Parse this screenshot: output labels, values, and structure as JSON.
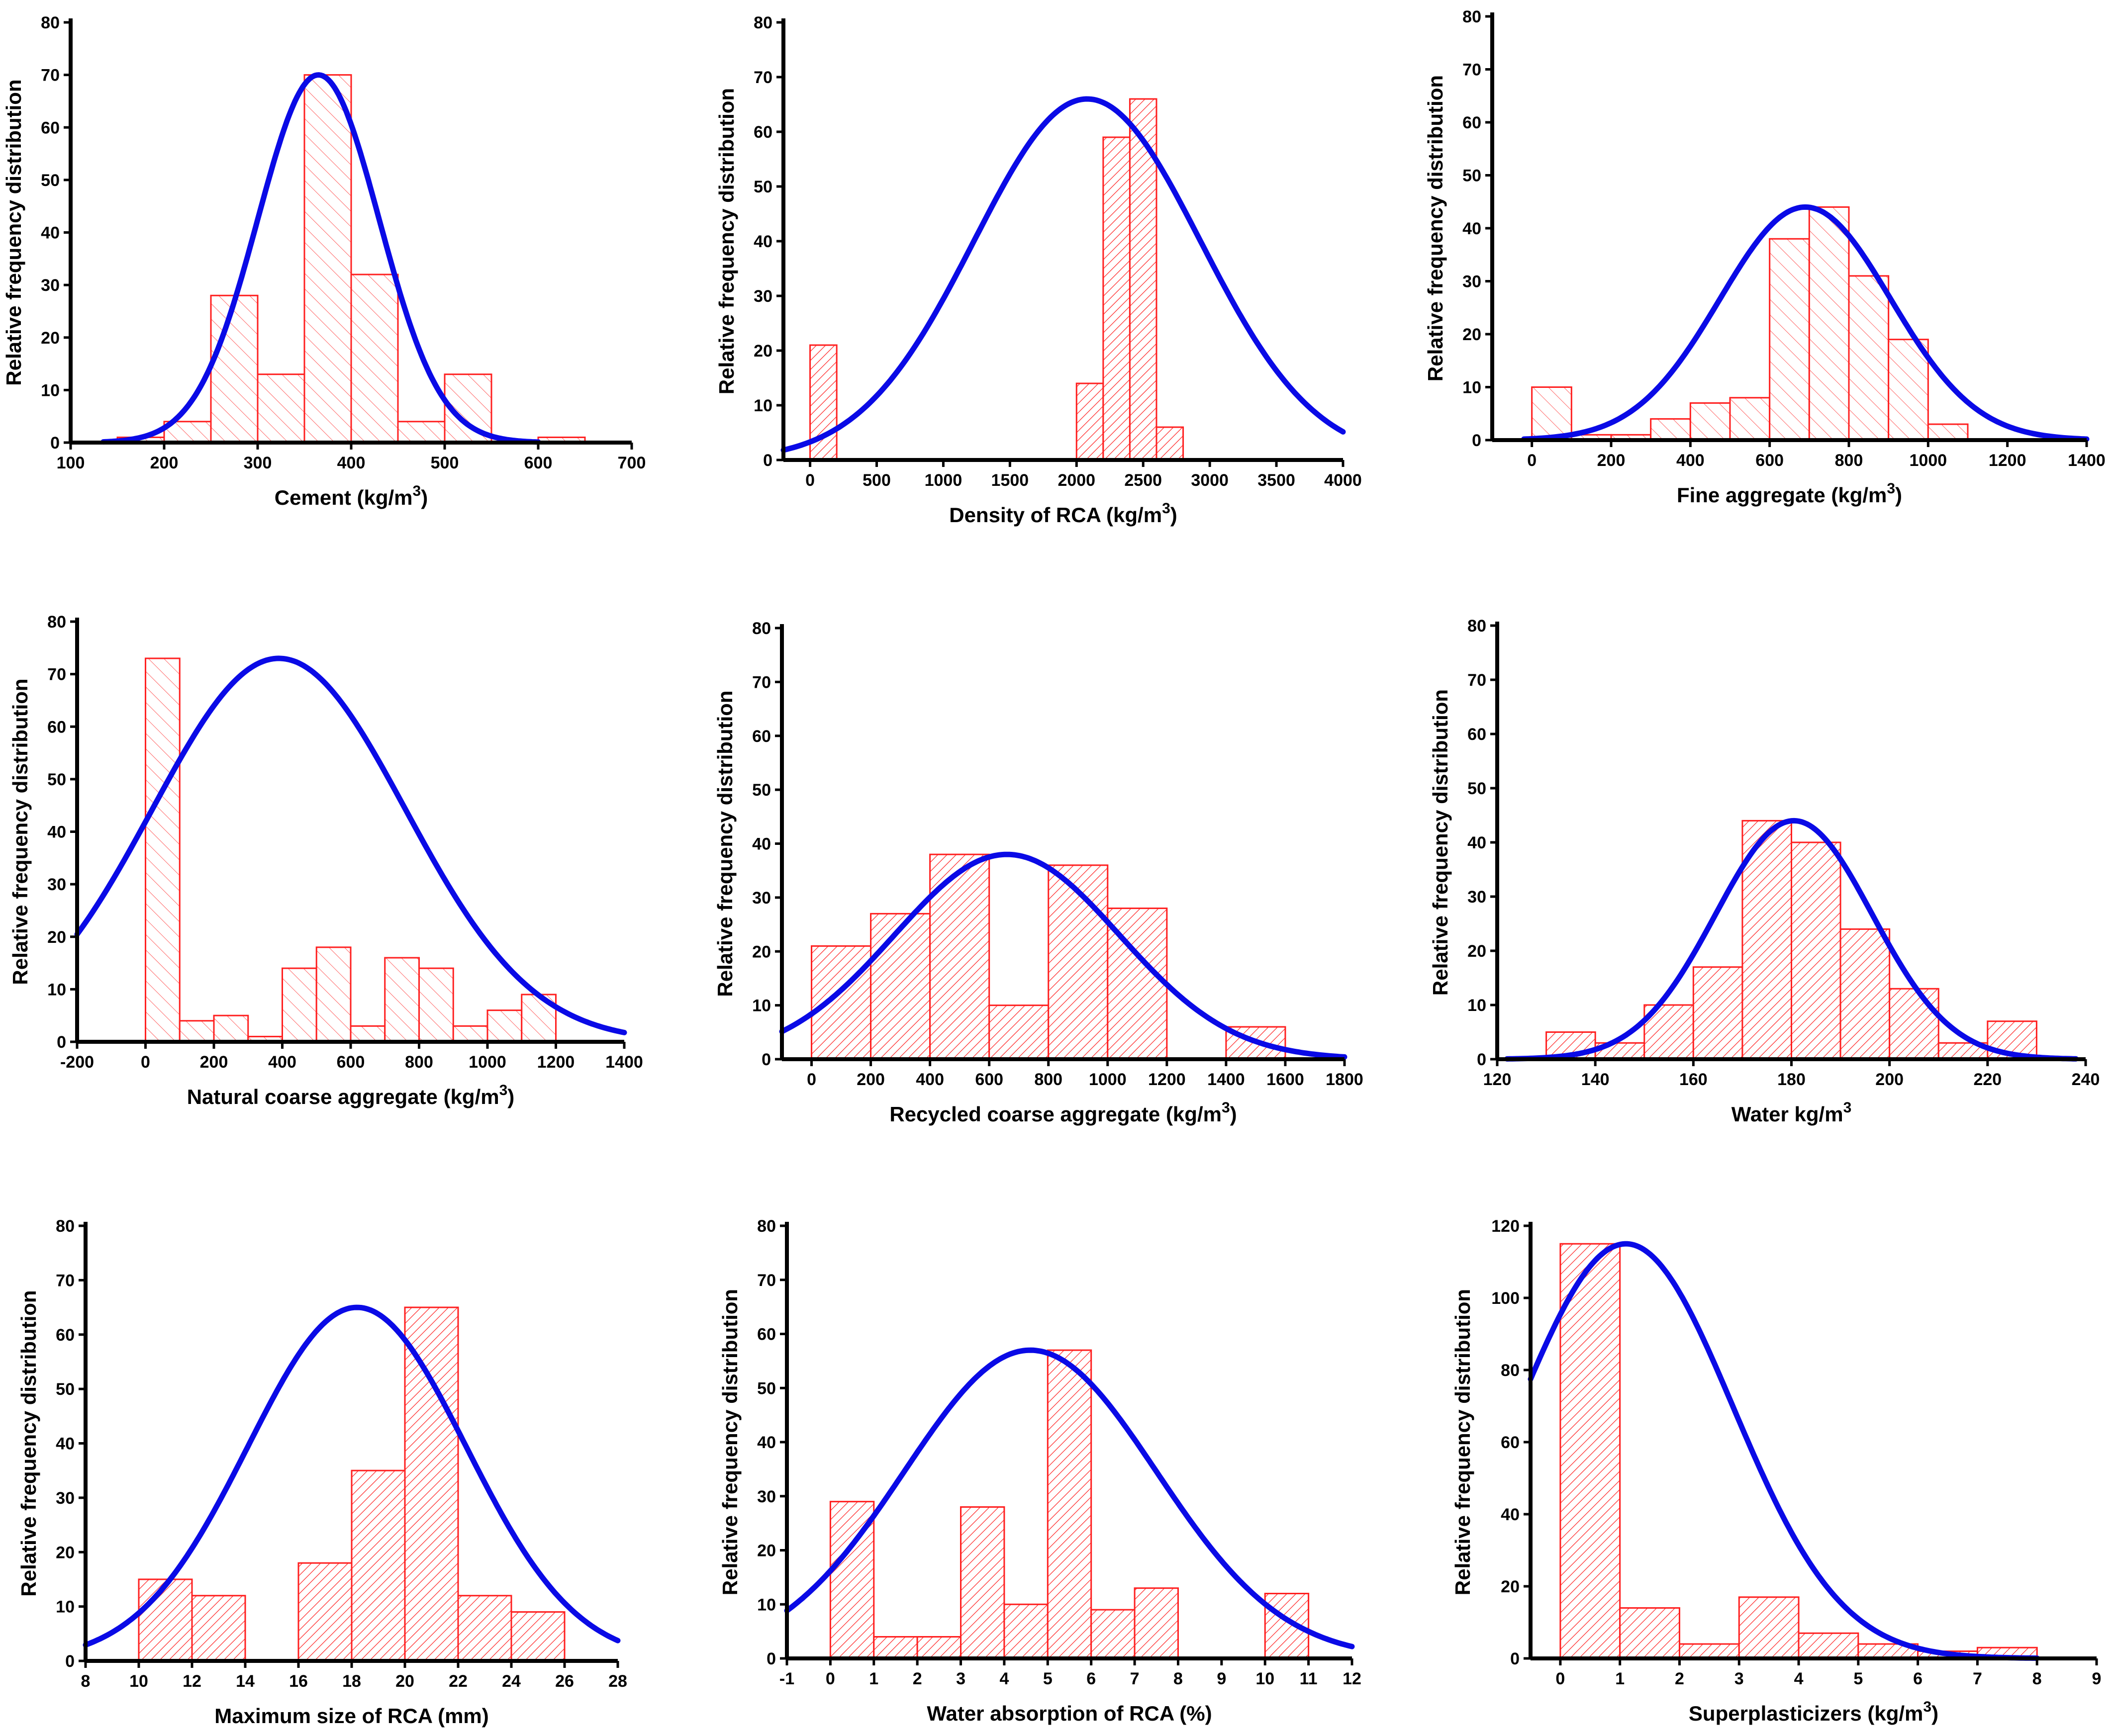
{
  "figure": {
    "type": "grid-of-histograms",
    "rows": 3,
    "cols": 3
  },
  "colors": {
    "bar": "#ff2020",
    "curve": "#0a0ae6",
    "axis": "#000000"
  },
  "chart_data": [
    {
      "type": "bar",
      "style": "histogram-with-normal-fit",
      "hatch": "light",
      "xlabel_main": "Cement (kg/m",
      "xlabel_sup": "3",
      "xlabel_tail": ")",
      "ylabel": "Relative frequency distribution",
      "xlim": [
        100,
        700
      ],
      "ylim": [
        0,
        80
      ],
      "xticks": [
        100,
        200,
        300,
        400,
        500,
        600,
        700
      ],
      "yticks": [
        0,
        10,
        20,
        30,
        40,
        50,
        60,
        70,
        80
      ],
      "bins": [
        [
          150,
          200,
          1
        ],
        [
          200,
          250,
          4
        ],
        [
          250,
          300,
          28
        ],
        [
          300,
          350,
          13
        ],
        [
          350,
          400,
          70
        ],
        [
          400,
          450,
          32
        ],
        [
          450,
          500,
          4
        ],
        [
          500,
          550,
          13
        ],
        [
          600,
          650,
          1
        ]
      ],
      "fit": {
        "mean": 365,
        "sd": 65,
        "peak": 70,
        "xrange": [
          135,
          600
        ]
      }
    },
    {
      "type": "bar",
      "style": "histogram-with-normal-fit",
      "hatch": "dense",
      "xlabel_main": "Density of RCA (kg/m",
      "xlabel_sup": "3",
      "xlabel_tail": ")",
      "ylabel": "Relative frequency distribution",
      "xlim": [
        -200,
        4000
      ],
      "ylim": [
        0,
        80
      ],
      "xticks": [
        0,
        500,
        1000,
        1500,
        2000,
        2500,
        3000,
        3500,
        4000
      ],
      "yticks": [
        0,
        10,
        20,
        30,
        40,
        50,
        60,
        70,
        80
      ],
      "bins": [
        [
          0,
          200,
          21
        ],
        [
          2000,
          2200,
          14
        ],
        [
          2200,
          2400,
          59
        ],
        [
          2400,
          2600,
          66
        ],
        [
          2600,
          2800,
          6
        ]
      ],
      "fit": {
        "mean": 2080,
        "sd": 850,
        "peak": 66,
        "xrange": [
          -200,
          4000
        ]
      }
    },
    {
      "type": "bar",
      "style": "histogram-with-normal-fit",
      "hatch": "light",
      "xlabel_main": "Fine aggregate (kg/m",
      "xlabel_sup": "3",
      "xlabel_tail": ")",
      "ylabel": "Relative frequency distribution",
      "xlim": [
        -100,
        1400
      ],
      "ylim": [
        0,
        80
      ],
      "xticks": [
        0,
        200,
        400,
        600,
        800,
        1000,
        1200,
        1400
      ],
      "yticks": [
        0,
        10,
        20,
        30,
        40,
        50,
        60,
        70,
        80
      ],
      "bins": [
        [
          0,
          100,
          10
        ],
        [
          100,
          200,
          1
        ],
        [
          200,
          300,
          1
        ],
        [
          300,
          400,
          4
        ],
        [
          400,
          500,
          7
        ],
        [
          500,
          600,
          8
        ],
        [
          600,
          700,
          38
        ],
        [
          700,
          800,
          44
        ],
        [
          800,
          900,
          31
        ],
        [
          900,
          1000,
          19
        ],
        [
          1000,
          1100,
          3
        ]
      ],
      "fit": {
        "mean": 690,
        "sd": 215,
        "peak": 44,
        "xrange": [
          -20,
          1400
        ]
      }
    },
    {
      "type": "bar",
      "style": "histogram-with-normal-fit",
      "hatch": "light",
      "xlabel_main": "Natural coarse aggregate (kg/m",
      "xlabel_sup": "3",
      "xlabel_tail": ")",
      "ylabel": "Relative frequency distribution",
      "xlim": [
        -200,
        1400
      ],
      "ylim": [
        0,
        80
      ],
      "xticks": [
        -200,
        0,
        200,
        400,
        600,
        800,
        1000,
        1200,
        1400
      ],
      "yticks": [
        0,
        10,
        20,
        30,
        40,
        50,
        60,
        70,
        80
      ],
      "bins": [
        [
          0,
          100,
          73
        ],
        [
          100,
          200,
          4
        ],
        [
          200,
          300,
          5
        ],
        [
          300,
          400,
          1
        ],
        [
          400,
          500,
          14
        ],
        [
          500,
          600,
          18
        ],
        [
          600,
          700,
          3
        ],
        [
          700,
          800,
          16
        ],
        [
          800,
          900,
          14
        ],
        [
          900,
          1000,
          3
        ],
        [
          1000,
          1100,
          6
        ],
        [
          1100,
          1200,
          9
        ]
      ],
      "fit": {
        "mean": 390,
        "sd": 370,
        "peak": 73,
        "xrange": [
          -200,
          1400
        ]
      }
    },
    {
      "type": "bar",
      "style": "histogram-with-normal-fit",
      "hatch": "dense",
      "xlabel_main": "Recycled coarse aggregate (kg/m",
      "xlabel_sup": "3",
      "xlabel_tail": ")",
      "ylabel": "Relative frequency distribution",
      "xlim": [
        -100,
        1800
      ],
      "ylim": [
        0,
        80
      ],
      "xticks": [
        0,
        200,
        400,
        600,
        800,
        1000,
        1200,
        1400,
        1600,
        1800
      ],
      "yticks": [
        0,
        10,
        20,
        30,
        40,
        50,
        60,
        70,
        80
      ],
      "bins": [
        [
          0,
          200,
          21
        ],
        [
          200,
          400,
          27
        ],
        [
          400,
          600,
          38
        ],
        [
          600,
          800,
          10
        ],
        [
          800,
          1000,
          36
        ],
        [
          1000,
          1200,
          28
        ],
        [
          1400,
          1600,
          6
        ]
      ],
      "fit": {
        "mean": 660,
        "sd": 380,
        "peak": 38,
        "xrange": [
          -100,
          1800
        ]
      }
    },
    {
      "type": "bar",
      "style": "histogram-with-normal-fit",
      "hatch": "dense",
      "xlabel_main": "Water kg/m",
      "xlabel_sup": "3",
      "xlabel_tail": "",
      "ylabel": "Relative frequency distribution",
      "xlim": [
        120,
        240
      ],
      "ylim": [
        0,
        80
      ],
      "xticks": [
        120,
        140,
        160,
        180,
        200,
        220,
        240
      ],
      "yticks": [
        0,
        10,
        20,
        30,
        40,
        50,
        60,
        70,
        80
      ],
      "bins": [
        [
          130,
          140,
          5
        ],
        [
          140,
          150,
          3
        ],
        [
          150,
          160,
          10
        ],
        [
          160,
          170,
          17
        ],
        [
          170,
          180,
          44
        ],
        [
          180,
          190,
          40
        ],
        [
          190,
          200,
          24
        ],
        [
          200,
          210,
          13
        ],
        [
          210,
          220,
          3
        ],
        [
          220,
          230,
          7
        ]
      ],
      "fit": {
        "mean": 180.5,
        "sd": 16,
        "peak": 44,
        "xrange": [
          122,
          238
        ]
      }
    },
    {
      "type": "bar",
      "style": "histogram-with-normal-fit",
      "hatch": "dense",
      "xlabel_main": "Maximum size of RCA (mm)",
      "xlabel_sup": "",
      "xlabel_tail": "",
      "ylabel": "Relative frequency distribution",
      "xlim": [
        8,
        28
      ],
      "ylim": [
        0,
        80
      ],
      "xticks": [
        8,
        10,
        12,
        14,
        16,
        18,
        20,
        22,
        24,
        26,
        28
      ],
      "yticks": [
        0,
        10,
        20,
        30,
        40,
        50,
        60,
        70,
        80
      ],
      "bins": [
        [
          10,
          12,
          15
        ],
        [
          12,
          14,
          12
        ],
        [
          16,
          18,
          18
        ],
        [
          18,
          20,
          35
        ],
        [
          20,
          22,
          65
        ],
        [
          22,
          24,
          12
        ],
        [
          24,
          26,
          9
        ]
      ],
      "fit": {
        "mean": 18.2,
        "sd": 4.1,
        "peak": 65,
        "xrange": [
          8,
          28
        ]
      }
    },
    {
      "type": "bar",
      "style": "histogram-with-normal-fit",
      "hatch": "dense",
      "xlabel_main": "Water absorption of RCA (%)",
      "xlabel_sup": "",
      "xlabel_tail": "",
      "ylabel": "Relative frequency distribution",
      "xlim": [
        -1,
        12
      ],
      "ylim": [
        0,
        80
      ],
      "xticks": [
        -1,
        0,
        1,
        2,
        3,
        4,
        5,
        6,
        7,
        8,
        9,
        10,
        11,
        12
      ],
      "yticks": [
        0,
        10,
        20,
        30,
        40,
        50,
        60,
        70,
        80
      ],
      "bins": [
        [
          0,
          1,
          29
        ],
        [
          1,
          2,
          4
        ],
        [
          2,
          3,
          4
        ],
        [
          3,
          4,
          28
        ],
        [
          4,
          5,
          10
        ],
        [
          5,
          6,
          57
        ],
        [
          6,
          7,
          9
        ],
        [
          7,
          8,
          13
        ],
        [
          10,
          11,
          12
        ]
      ],
      "fit": {
        "mean": 4.6,
        "sd": 2.9,
        "peak": 57,
        "xrange": [
          -1,
          12
        ]
      }
    },
    {
      "type": "bar",
      "style": "histogram-with-normal-fit",
      "hatch": "dense",
      "xlabel_main": "Superplasticizers (kg/m",
      "xlabel_sup": "3",
      "xlabel_tail": ")",
      "ylabel": "Relative frequency distribution",
      "xlim": [
        -0.5,
        9
      ],
      "ylim": [
        0,
        120
      ],
      "xticks": [
        0,
        1,
        2,
        3,
        4,
        5,
        6,
        7,
        8,
        9
      ],
      "yticks": [
        0,
        20,
        40,
        60,
        80,
        100,
        120
      ],
      "bins": [
        [
          0,
          1,
          115
        ],
        [
          1,
          2,
          14
        ],
        [
          2,
          3,
          4
        ],
        [
          3,
          4,
          17
        ],
        [
          4,
          5,
          7
        ],
        [
          5,
          6,
          4
        ],
        [
          6,
          7,
          2
        ],
        [
          7,
          8,
          3
        ]
      ],
      "fit": {
        "mean": 1.1,
        "sd": 1.8,
        "peak": 115,
        "xrange": [
          -0.5,
          8
        ]
      }
    }
  ]
}
